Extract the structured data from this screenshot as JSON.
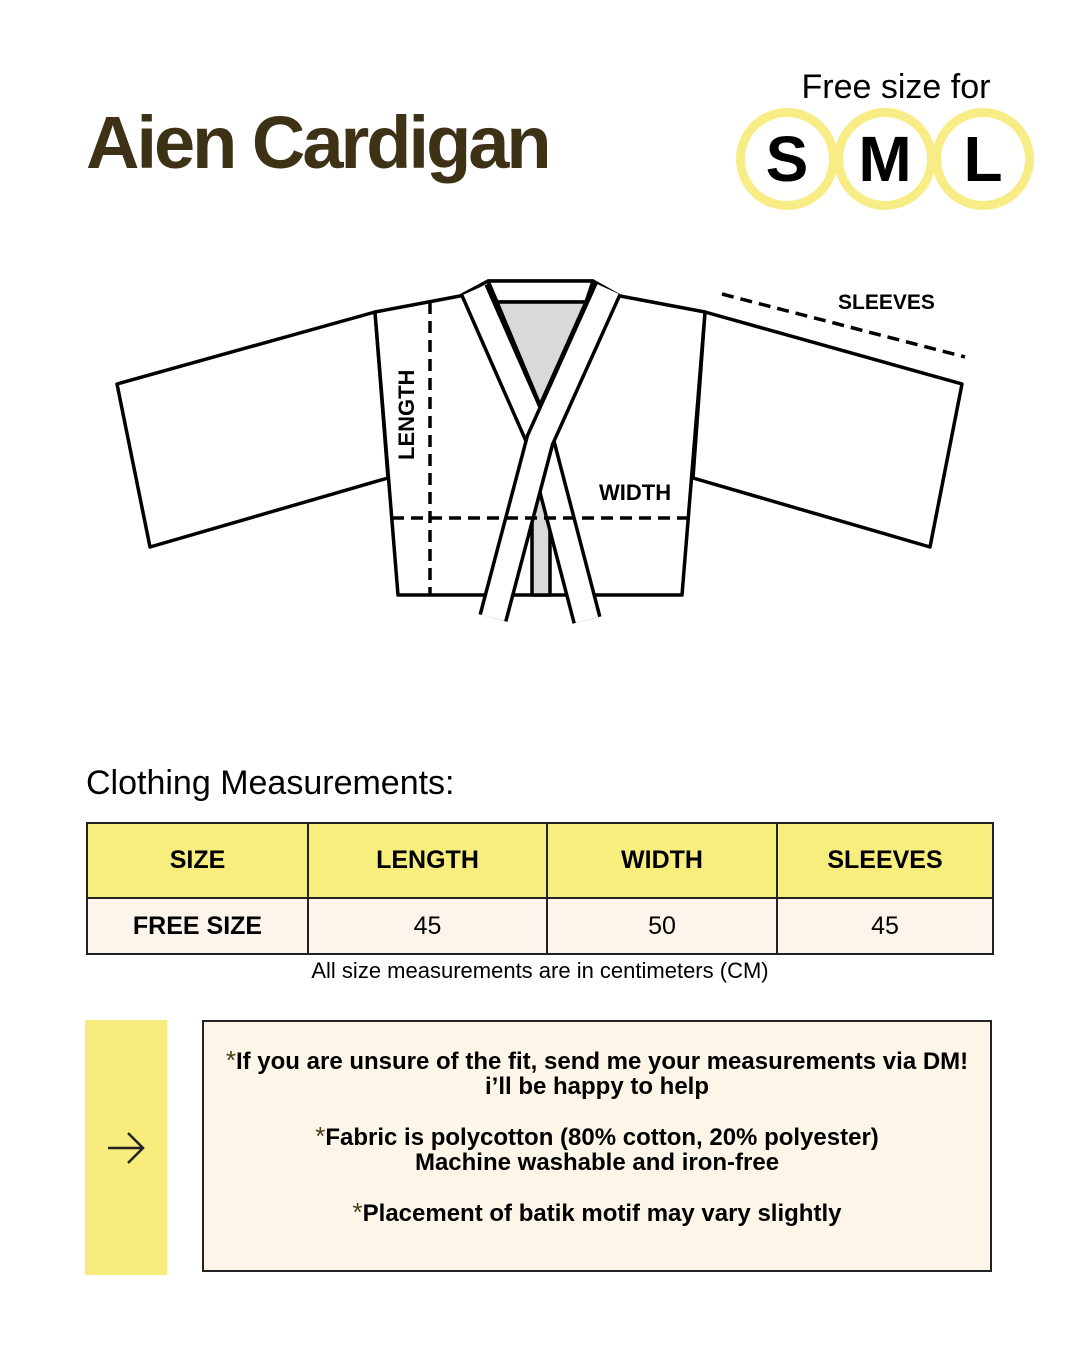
{
  "title": "Aien Cardigan",
  "size_badge": {
    "caption": "Free size for",
    "sizes": [
      "S",
      "M",
      "L"
    ],
    "ring_color": "#f8ec86"
  },
  "diagram_labels": {
    "length": "LENGTH",
    "width": "WIDTH",
    "sleeves": "SLEEVES"
  },
  "measurements": {
    "heading": "Clothing Measurements:",
    "columns": [
      "SIZE",
      "LENGTH",
      "WIDTH",
      "SLEEVES"
    ],
    "rows": [
      [
        "FREE SIZE",
        "45",
        "50",
        "45"
      ]
    ],
    "note": "All size measurements are in centimeters (CM)",
    "header_color": "#f8ee7e"
  },
  "info": {
    "arrow_icon": "arrow-right-icon",
    "bullet": "*",
    "items": [
      {
        "lines": [
          "If you are unsure of the fit, send me your measurements via DM!",
          "i’ll be happy to help"
        ]
      },
      {
        "lines": [
          "Fabric is polycotton (80% cotton, 20% polyester)",
          "Machine washable and iron-free"
        ]
      },
      {
        "lines": [
          "Placement of batik motif may vary slightly"
        ]
      }
    ]
  }
}
